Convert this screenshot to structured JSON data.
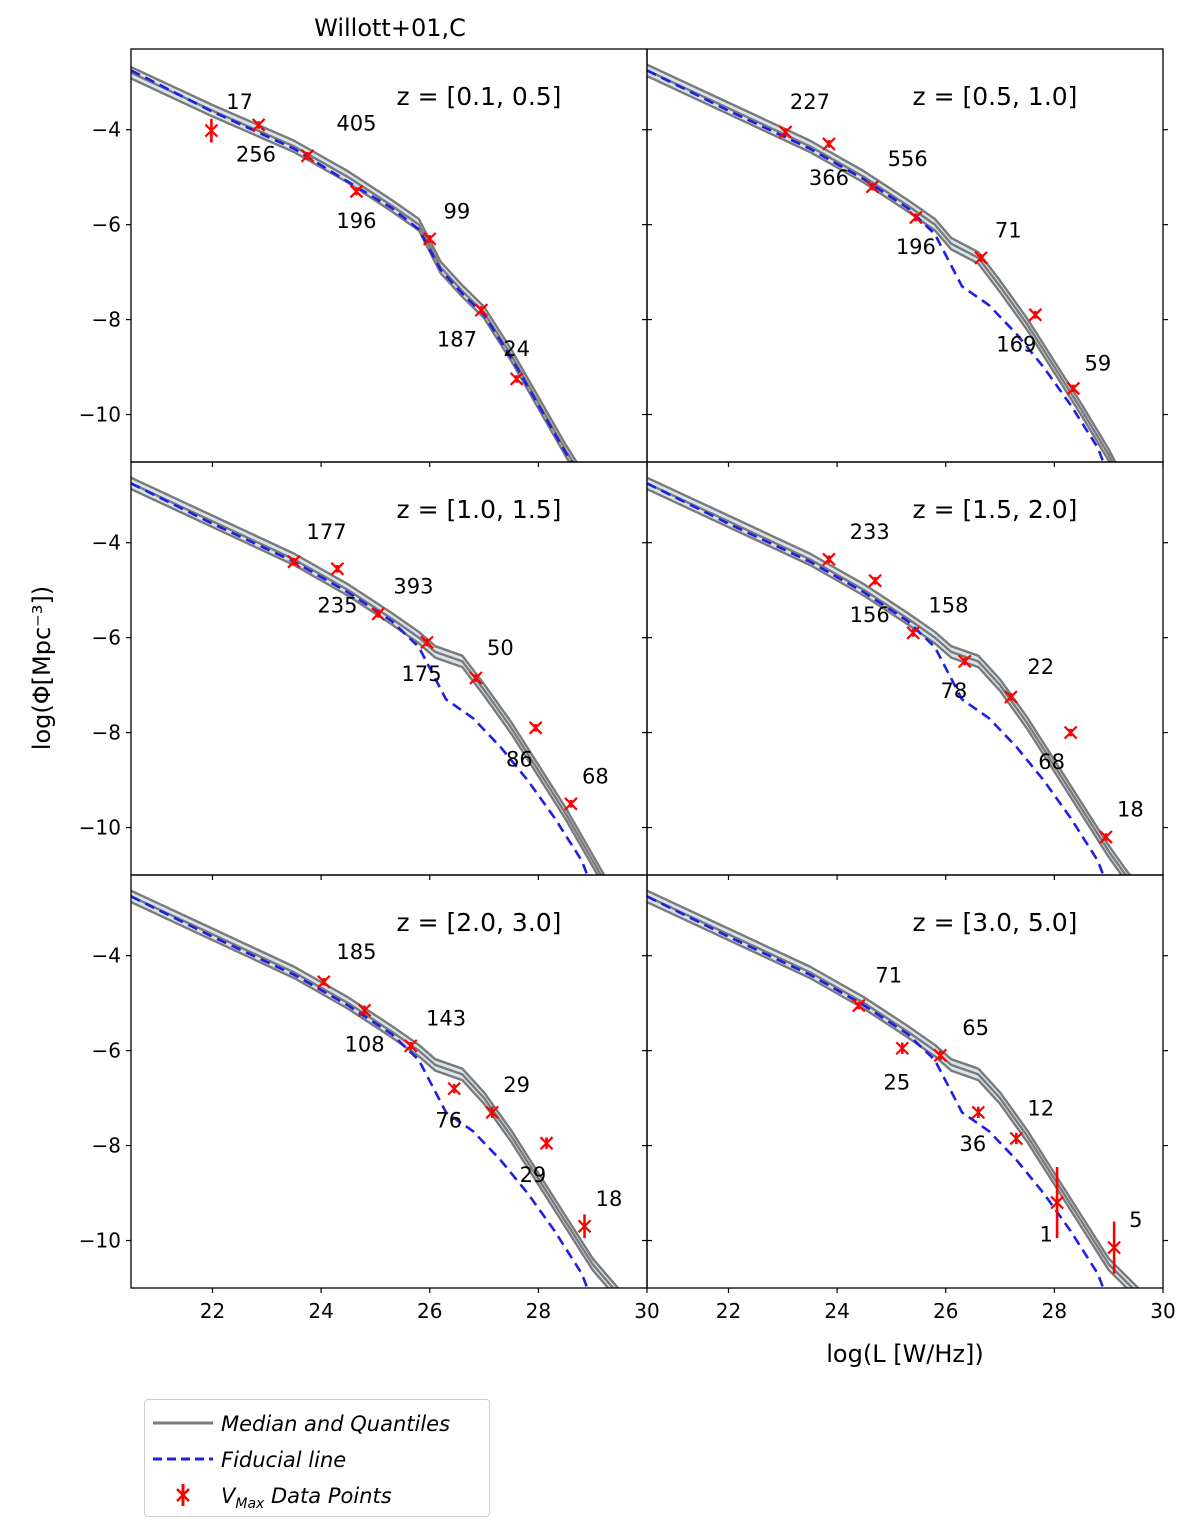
{
  "figure_title": "Willott+01,C",
  "xlabel": "log(L [W/Hz])",
  "ylabel": "log(Φ[Mpc⁻³])",
  "colors": {
    "quantile_line": "#7a7a7a",
    "quantile_fill": "#d6e4ee",
    "fiducial": "#1f1fe6",
    "data_points": "#ff0000"
  },
  "legend": {
    "median": "Median and Quantiles",
    "fiducial": "Fiducial line",
    "vmax_prefix": "V",
    "vmax_sub": "Max",
    "vmax_suffix": " Data Points"
  },
  "chart_data": {
    "type": "line",
    "layout": "3 rows x 2 columns, shared axes",
    "xlim": [
      20.5,
      30
    ],
    "ylim": [
      -11,
      -2.3
    ],
    "xticks": [
      22,
      24,
      26,
      28,
      30
    ],
    "yticks": [
      -4,
      -6,
      -8,
      -10
    ],
    "legend_position": "below figure, lower-left",
    "panels": [
      {
        "label": "z = [0.1, 0.5]",
        "median": [
          [
            20.5,
            -2.8
          ],
          [
            22,
            -3.6
          ],
          [
            23.5,
            -4.35
          ],
          [
            24.5,
            -5.0
          ],
          [
            25.3,
            -5.6
          ],
          [
            25.8,
            -6.0
          ],
          [
            26.2,
            -6.9
          ],
          [
            26.6,
            -7.4
          ],
          [
            27.0,
            -7.85
          ],
          [
            27.5,
            -8.75
          ],
          [
            28.0,
            -9.75
          ],
          [
            28.5,
            -10.75
          ],
          [
            28.8,
            -11.3
          ]
        ],
        "fiducial": [
          [
            20.5,
            -2.75
          ],
          [
            22,
            -3.62
          ],
          [
            23.5,
            -4.4
          ],
          [
            24.5,
            -5.1
          ],
          [
            25.3,
            -5.65
          ],
          [
            25.8,
            -6.1
          ],
          [
            26.2,
            -6.95
          ],
          [
            26.6,
            -7.45
          ],
          [
            27.0,
            -7.9
          ],
          [
            27.5,
            -8.8
          ],
          [
            28.0,
            -9.8
          ],
          [
            28.5,
            -10.8
          ],
          [
            28.8,
            -11.3
          ]
        ],
        "points": [
          {
            "x": 21.98,
            "y": -4.02,
            "err": 0.25,
            "n": "17",
            "lx": 22.5,
            "ly": -3.4
          },
          {
            "x": 22.85,
            "y": -3.9,
            "err": 0.08,
            "n": "256",
            "lx": 22.8,
            "ly": -4.5
          },
          {
            "x": 23.75,
            "y": -4.55,
            "err": 0.08,
            "n": "405",
            "lx": 24.65,
            "ly": -3.85
          },
          {
            "x": 24.65,
            "y": -5.3,
            "err": 0.08,
            "n": "196",
            "lx": 24.65,
            "ly": -5.9
          },
          {
            "x": 26.0,
            "y": -6.3,
            "err": 0.08,
            "n": "99",
            "lx": 26.5,
            "ly": -5.7
          },
          {
            "x": 26.95,
            "y": -7.8,
            "err": 0.08,
            "n": "187",
            "lx": 26.5,
            "ly": -8.4
          },
          {
            "x": 27.6,
            "y": -9.25,
            "err": 0.08,
            "n": "24",
            "lx": 27.6,
            "ly": -8.6
          }
        ]
      },
      {
        "label": "z = [0.5, 1.0]",
        "median": [
          [
            20.5,
            -2.75
          ],
          [
            22,
            -3.55
          ],
          [
            23.5,
            -4.35
          ],
          [
            24.5,
            -5.0
          ],
          [
            25.3,
            -5.6
          ],
          [
            25.8,
            -6.0
          ],
          [
            26.1,
            -6.4
          ],
          [
            26.6,
            -6.7
          ],
          [
            27.0,
            -7.3
          ],
          [
            27.5,
            -8.1
          ],
          [
            28.0,
            -9.0
          ],
          [
            28.5,
            -9.9
          ],
          [
            29.0,
            -10.85
          ],
          [
            29.2,
            -11.3
          ]
        ],
        "fiducial": [
          [
            20.5,
            -2.75
          ],
          [
            22,
            -3.6
          ],
          [
            23.5,
            -4.4
          ],
          [
            24.5,
            -5.05
          ],
          [
            25.3,
            -5.65
          ],
          [
            25.8,
            -6.2
          ],
          [
            26.3,
            -7.3
          ],
          [
            26.8,
            -7.7
          ],
          [
            27.3,
            -8.3
          ],
          [
            27.8,
            -9.0
          ],
          [
            28.3,
            -9.8
          ],
          [
            28.8,
            -10.7
          ],
          [
            29.0,
            -11.3
          ]
        ],
        "points": [
          {
            "x": 23.05,
            "y": -4.05,
            "err": 0.08,
            "n": "227",
            "lx": 23.5,
            "ly": -3.4
          },
          {
            "x": 23.85,
            "y": -4.3,
            "err": 0.08,
            "n": "366",
            "lx": 23.85,
            "ly": -5.0
          },
          {
            "x": 24.65,
            "y": -5.2,
            "err": 0.08,
            "n": "556",
            "lx": 25.3,
            "ly": -4.6
          },
          {
            "x": 25.45,
            "y": -5.85,
            "err": 0.08,
            "n": "196",
            "lx": 25.45,
            "ly": -6.45
          },
          {
            "x": 26.65,
            "y": -6.7,
            "err": 0.08,
            "n": "71",
            "lx": 27.15,
            "ly": -6.1
          },
          {
            "x": 27.65,
            "y": -7.9,
            "err": 0.08,
            "n": "169",
            "lx": 27.3,
            "ly": -8.5
          },
          {
            "x": 28.35,
            "y": -9.45,
            "err": 0.08,
            "n": "59",
            "lx": 28.8,
            "ly": -8.9
          }
        ]
      },
      {
        "label": "z = [1.0, 1.5]",
        "median": [
          [
            20.5,
            -2.75
          ],
          [
            22,
            -3.55
          ],
          [
            23.5,
            -4.35
          ],
          [
            24.5,
            -5.0
          ],
          [
            25.3,
            -5.6
          ],
          [
            25.8,
            -6.0
          ],
          [
            26.1,
            -6.3
          ],
          [
            26.6,
            -6.5
          ],
          [
            27.0,
            -7.1
          ],
          [
            27.5,
            -7.9
          ],
          [
            28.0,
            -8.8
          ],
          [
            28.5,
            -9.7
          ],
          [
            29.0,
            -10.7
          ],
          [
            29.3,
            -11.3
          ]
        ],
        "fiducial": [
          [
            20.5,
            -2.75
          ],
          [
            22,
            -3.6
          ],
          [
            23.5,
            -4.4
          ],
          [
            24.5,
            -5.05
          ],
          [
            25.3,
            -5.65
          ],
          [
            25.8,
            -6.2
          ],
          [
            26.3,
            -7.3
          ],
          [
            26.8,
            -7.7
          ],
          [
            27.3,
            -8.3
          ],
          [
            27.8,
            -9.0
          ],
          [
            28.3,
            -9.8
          ],
          [
            28.8,
            -10.7
          ],
          [
            29.0,
            -11.3
          ]
        ],
        "points": [
          {
            "x": 23.5,
            "y": -4.4,
            "err": 0.08,
            "n": "177",
            "lx": 24.1,
            "ly": -3.75
          },
          {
            "x": 24.3,
            "y": -4.55,
            "err": 0.08,
            "n": "235",
            "lx": 24.3,
            "ly": -5.3
          },
          {
            "x": 25.05,
            "y": -5.5,
            "err": 0.08,
            "n": "393",
            "lx": 25.7,
            "ly": -4.9
          },
          {
            "x": 25.95,
            "y": -6.1,
            "err": 0.08,
            "n": "175",
            "lx": 25.85,
            "ly": -6.75
          },
          {
            "x": 26.85,
            "y": -6.85,
            "err": 0.08,
            "n": "50",
            "lx": 27.3,
            "ly": -6.2
          },
          {
            "x": 27.95,
            "y": -7.9,
            "err": 0.08,
            "n": "86",
            "lx": 27.65,
            "ly": -8.55
          },
          {
            "x": 28.6,
            "y": -9.5,
            "err": 0.08,
            "n": "68",
            "lx": 29.05,
            "ly": -8.9
          }
        ]
      },
      {
        "label": "z = [1.5, 2.0]",
        "median": [
          [
            20.5,
            -2.75
          ],
          [
            22,
            -3.55
          ],
          [
            23.5,
            -4.35
          ],
          [
            24.5,
            -5.0
          ],
          [
            25.3,
            -5.6
          ],
          [
            25.8,
            -6.0
          ],
          [
            26.1,
            -6.3
          ],
          [
            26.6,
            -6.5
          ],
          [
            27.0,
            -7.0
          ],
          [
            27.5,
            -7.8
          ],
          [
            28.0,
            -8.7
          ],
          [
            28.5,
            -9.6
          ],
          [
            29.0,
            -10.5
          ],
          [
            29.5,
            -11.3
          ]
        ],
        "fiducial": [
          [
            20.5,
            -2.75
          ],
          [
            22,
            -3.6
          ],
          [
            23.5,
            -4.4
          ],
          [
            24.5,
            -5.05
          ],
          [
            25.3,
            -5.65
          ],
          [
            25.8,
            -6.2
          ],
          [
            26.3,
            -7.3
          ],
          [
            26.8,
            -7.7
          ],
          [
            27.3,
            -8.3
          ],
          [
            27.8,
            -9.0
          ],
          [
            28.3,
            -9.8
          ],
          [
            28.8,
            -10.7
          ],
          [
            29.0,
            -11.3
          ]
        ],
        "points": [
          {
            "x": 23.85,
            "y": -4.35,
            "err": 0.08,
            "n": "233",
            "lx": 24.6,
            "ly": -3.75
          },
          {
            "x": 24.7,
            "y": -4.8,
            "err": 0.08,
            "n": "156",
            "lx": 24.6,
            "ly": -5.5
          },
          {
            "x": 25.4,
            "y": -5.9,
            "err": 0.08,
            "n": "158",
            "lx": 26.05,
            "ly": -5.3
          },
          {
            "x": 26.35,
            "y": -6.5,
            "err": 0.08,
            "n": "78",
            "lx": 26.15,
            "ly": -7.1
          },
          {
            "x": 27.2,
            "y": -7.25,
            "err": 0.08,
            "n": "22",
            "lx": 27.75,
            "ly": -6.6
          },
          {
            "x": 28.3,
            "y": -8.0,
            "err": 0.08,
            "n": "68",
            "lx": 27.95,
            "ly": -8.6
          },
          {
            "x": 28.95,
            "y": -10.2,
            "err": 0.08,
            "n": "18",
            "lx": 29.4,
            "ly": -9.6
          }
        ]
      },
      {
        "label": "z = [2.0, 3.0]",
        "median": [
          [
            20.5,
            -2.75
          ],
          [
            22,
            -3.55
          ],
          [
            23.5,
            -4.35
          ],
          [
            24.5,
            -5.0
          ],
          [
            25.3,
            -5.6
          ],
          [
            25.8,
            -6.0
          ],
          [
            26.1,
            -6.3
          ],
          [
            26.6,
            -6.5
          ],
          [
            27.0,
            -7.0
          ],
          [
            27.5,
            -7.8
          ],
          [
            28.0,
            -8.7
          ],
          [
            28.5,
            -9.6
          ],
          [
            29.0,
            -10.5
          ],
          [
            29.6,
            -11.3
          ]
        ],
        "fiducial": [
          [
            20.5,
            -2.75
          ],
          [
            22,
            -3.6
          ],
          [
            23.5,
            -4.4
          ],
          [
            24.5,
            -5.05
          ],
          [
            25.3,
            -5.65
          ],
          [
            25.8,
            -6.2
          ],
          [
            26.3,
            -7.3
          ],
          [
            26.8,
            -7.7
          ],
          [
            27.3,
            -8.3
          ],
          [
            27.8,
            -9.0
          ],
          [
            28.3,
            -9.8
          ],
          [
            28.8,
            -10.7
          ],
          [
            29.0,
            -11.3
          ]
        ],
        "points": [
          {
            "x": 24.05,
            "y": -4.55,
            "err": 0.08,
            "n": "185",
            "lx": 24.65,
            "ly": -3.9
          },
          {
            "x": 24.8,
            "y": -5.15,
            "err": 0.1,
            "n": "108",
            "lx": 24.8,
            "ly": -5.85
          },
          {
            "x": 25.65,
            "y": -5.9,
            "err": 0.08,
            "n": "143",
            "lx": 26.3,
            "ly": -5.3
          },
          {
            "x": 26.45,
            "y": -6.8,
            "err": 0.1,
            "n": "76",
            "lx": 26.35,
            "ly": -7.45
          },
          {
            "x": 27.15,
            "y": -7.3,
            "err": 0.12,
            "n": "29",
            "lx": 27.6,
            "ly": -6.7
          },
          {
            "x": 28.15,
            "y": -7.95,
            "err": 0.12,
            "n": "29",
            "lx": 27.9,
            "ly": -8.6
          },
          {
            "x": 28.85,
            "y": -9.7,
            "err": 0.25,
            "n": "18",
            "lx": 29.3,
            "ly": -9.1
          }
        ]
      },
      {
        "label": "z = [3.0, 5.0]",
        "median": [
          [
            20.5,
            -2.75
          ],
          [
            22,
            -3.55
          ],
          [
            23.5,
            -4.35
          ],
          [
            24.5,
            -5.0
          ],
          [
            25.3,
            -5.6
          ],
          [
            25.8,
            -6.0
          ],
          [
            26.1,
            -6.3
          ],
          [
            26.6,
            -6.5
          ],
          [
            27.0,
            -7.0
          ],
          [
            27.5,
            -7.8
          ],
          [
            28.0,
            -8.7
          ],
          [
            28.5,
            -9.6
          ],
          [
            29.0,
            -10.5
          ],
          [
            29.7,
            -11.3
          ]
        ],
        "fiducial": [
          [
            20.5,
            -2.75
          ],
          [
            22,
            -3.6
          ],
          [
            23.5,
            -4.4
          ],
          [
            24.5,
            -5.05
          ],
          [
            25.3,
            -5.65
          ],
          [
            25.8,
            -6.2
          ],
          [
            26.3,
            -7.3
          ],
          [
            26.8,
            -7.7
          ],
          [
            27.3,
            -8.3
          ],
          [
            27.8,
            -9.0
          ],
          [
            28.3,
            -9.8
          ],
          [
            28.8,
            -10.7
          ],
          [
            29.0,
            -11.3
          ]
        ],
        "points": [
          {
            "x": 24.4,
            "y": -5.05,
            "err": 0.08,
            "n": "71",
            "lx": 24.95,
            "ly": -4.4
          },
          {
            "x": 25.2,
            "y": -5.95,
            "err": 0.12,
            "n": "25",
            "lx": 25.1,
            "ly": -6.65
          },
          {
            "x": 25.9,
            "y": -6.1,
            "err": 0.1,
            "n": "65",
            "lx": 26.55,
            "ly": -5.5
          },
          {
            "x": 26.6,
            "y": -7.3,
            "err": 0.12,
            "n": "36",
            "lx": 26.5,
            "ly": -7.95
          },
          {
            "x": 27.3,
            "y": -7.85,
            "err": 0.12,
            "n": "12",
            "lx": 27.75,
            "ly": -7.2
          },
          {
            "x": 28.05,
            "y": -9.2,
            "err": 0.75,
            "n": "1",
            "lx": 27.85,
            "ly": -9.85
          },
          {
            "x": 29.1,
            "y": -10.15,
            "err": 0.55,
            "n": "5",
            "lx": 29.5,
            "ly": -9.55
          }
        ]
      }
    ]
  }
}
